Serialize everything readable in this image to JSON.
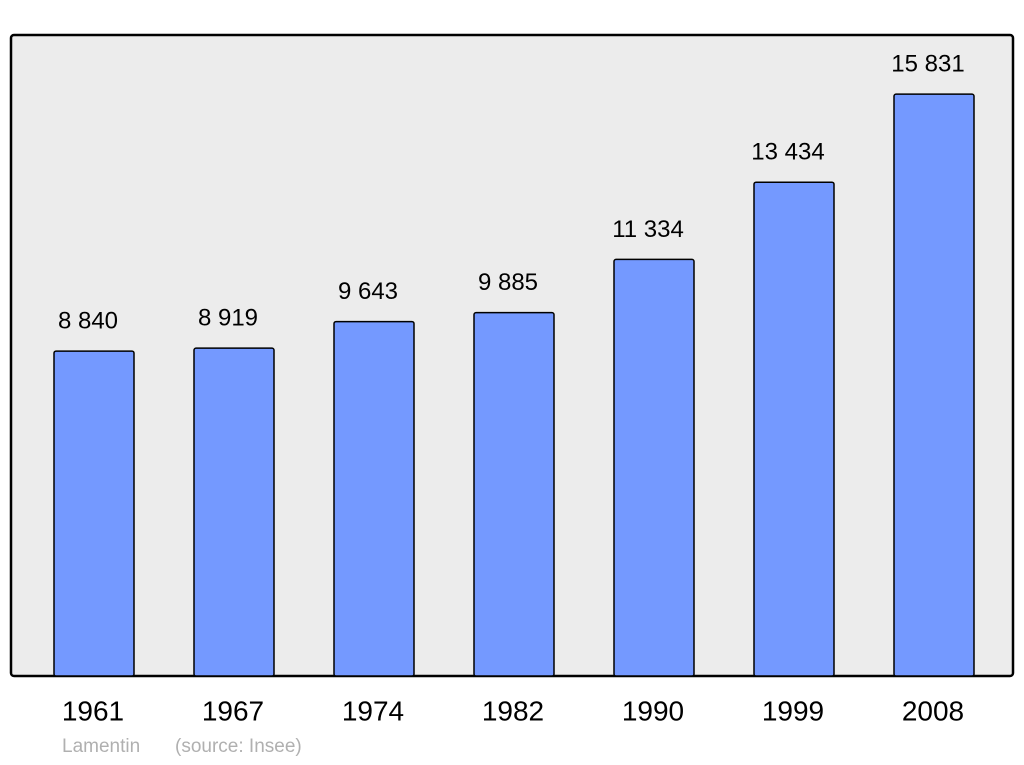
{
  "chart_data": {
    "type": "bar",
    "categories": [
      "1961",
      "1967",
      "1974",
      "1982",
      "1990",
      "1999",
      "2008"
    ],
    "values": [
      8840,
      8919,
      9643,
      9885,
      11334,
      13434,
      15831
    ],
    "value_labels": [
      "8 840",
      "8 919",
      "9 643",
      "9 885",
      "11 334",
      "13 434",
      "15 831"
    ],
    "color": "#7499ff",
    "ylim": [
      0,
      17440
    ],
    "annotations": [
      "Lamentin",
      "(source: Insee)"
    ]
  }
}
